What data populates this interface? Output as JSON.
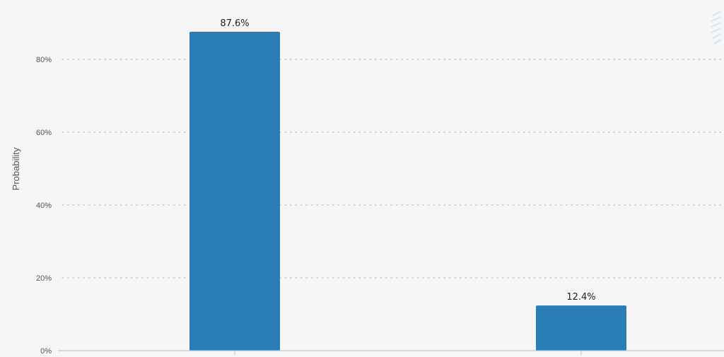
{
  "chart_data": {
    "type": "bar",
    "categories": [
      "",
      ""
    ],
    "values": [
      87.6,
      12.4
    ],
    "value_labels": [
      "87.6%",
      "12.4%"
    ],
    "title": "",
    "xlabel": "",
    "ylabel": "Probability",
    "ylim": [
      0,
      100
    ],
    "yticks": [
      0,
      20,
      40,
      60,
      80
    ],
    "ytick_labels": [
      "0%",
      "20%",
      "40%",
      "60%",
      "80%"
    ],
    "grid": true,
    "bar_color": "#2a7db5",
    "grid_color": "#c8c8c8"
  }
}
